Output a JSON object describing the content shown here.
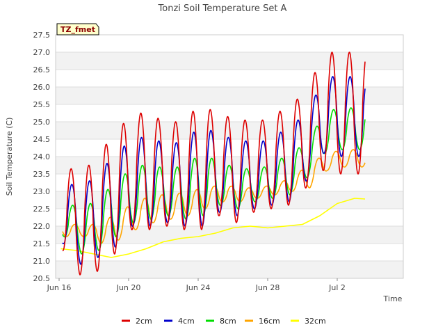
{
  "chart_data": {
    "type": "line",
    "title": "Tonzi Soil Temperature Set A",
    "xlabel": "Time",
    "ylabel": "Soil Temperature (C)",
    "badge": "TZ_fmet",
    "ylim": [
      20.5,
      27.5
    ],
    "xlim_days": [
      15.8,
      35.8
    ],
    "xlim_labels": [
      "Jun 15",
      "Jul 5"
    ],
    "yticks": [
      "20.5",
      "21.0",
      "21.5",
      "22.0",
      "22.5",
      "23.0",
      "23.5",
      "24.0",
      "24.5",
      "25.0",
      "25.5",
      "26.0",
      "26.5",
      "27.0",
      "27.5"
    ],
    "xticks": [
      {
        "day": 16,
        "label": "Jun 16"
      },
      {
        "day": 20,
        "label": "Jun 20"
      },
      {
        "day": 24,
        "label": "Jun 24"
      },
      {
        "day": 28,
        "label": "Jun 28"
      },
      {
        "day": 32,
        "label": "Jul 2"
      }
    ],
    "grid": true,
    "legend_position": "bottom",
    "series": [
      {
        "name": "2cm",
        "color": "#dd0000",
        "min": [
          21.3,
          20.6,
          20.7,
          21.2,
          21.9,
          21.9,
          22.0,
          21.9,
          21.9,
          22.3,
          22.1,
          22.4,
          22.5,
          22.6,
          23.1,
          23.6,
          23.5
        ],
        "max": [
          23.8,
          23.5,
          24.0,
          24.7,
          25.2,
          25.3,
          24.9,
          25.1,
          25.5,
          25.2,
          25.1,
          25.0,
          25.1,
          25.5,
          25.8,
          27.0,
          27.0
        ]
      },
      {
        "name": "4cm",
        "color": "#0000cc",
        "min": [
          21.5,
          20.9,
          21.1,
          21.4,
          22.0,
          22.0,
          22.1,
          22.0,
          22.0,
          22.4,
          22.3,
          22.5,
          22.6,
          22.7,
          23.3,
          24.1,
          24.0
        ],
        "max": [
          23.3,
          23.1,
          23.5,
          24.1,
          24.5,
          24.6,
          24.3,
          24.5,
          24.9,
          24.6,
          24.5,
          24.4,
          24.5,
          24.9,
          25.2,
          26.3,
          26.3
        ]
      },
      {
        "name": "8cm",
        "color": "#00dd00",
        "min": [
          21.7,
          21.2,
          21.3,
          21.7,
          22.1,
          22.2,
          22.3,
          22.2,
          22.3,
          22.6,
          22.5,
          22.7,
          22.8,
          22.9,
          23.4,
          24.1,
          24.2
        ],
        "max": [
          22.7,
          22.5,
          22.8,
          23.3,
          23.7,
          23.8,
          23.6,
          23.8,
          24.1,
          23.8,
          23.7,
          23.6,
          23.8,
          24.1,
          24.4,
          25.3,
          25.4
        ]
      },
      {
        "name": "16cm",
        "color": "#ffa500",
        "min": [
          21.7,
          21.7,
          21.5,
          21.6,
          21.9,
          22.1,
          22.2,
          22.3,
          22.5,
          22.7,
          22.7,
          22.8,
          22.9,
          23.0,
          23.1,
          23.6,
          23.7
        ],
        "max": [
          22.1,
          22.0,
          22.1,
          22.4,
          22.7,
          22.9,
          22.9,
          23.0,
          23.1,
          23.2,
          23.1,
          23.1,
          23.2,
          23.4,
          23.8,
          24.1,
          24.2
        ]
      },
      {
        "name": "32cm",
        "color": "#ffff00",
        "x": [
          16.1,
          17.0,
          18.0,
          19.0,
          20.0,
          21.0,
          22.0,
          23.0,
          24.0,
          25.0,
          26.0,
          27.0,
          28.0,
          29.0,
          30.0,
          31.0,
          32.0,
          33.0,
          33.6
        ],
        "values": [
          21.35,
          21.3,
          21.2,
          21.1,
          21.2,
          21.35,
          21.55,
          21.65,
          21.7,
          21.8,
          21.95,
          22.0,
          21.95,
          22.0,
          22.05,
          22.3,
          22.65,
          22.8,
          22.78
        ]
      }
    ]
  }
}
